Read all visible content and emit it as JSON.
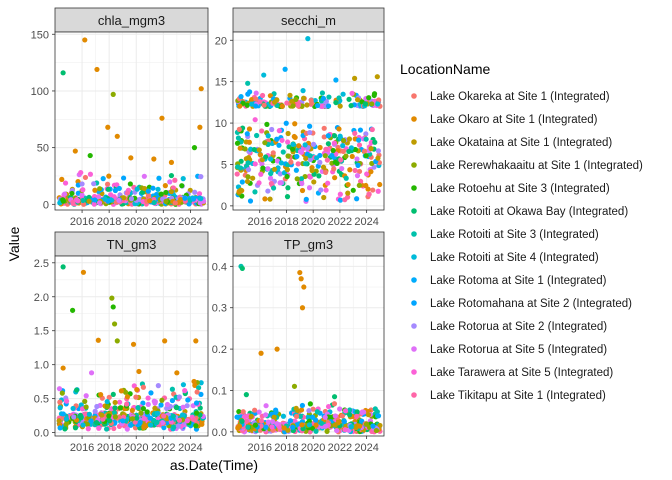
{
  "chart_data": {
    "type": "scatter",
    "xlabel": "as.Date(Time)",
    "ylabel": "Value",
    "x_range": [
      2014.0,
      2025.3
    ],
    "x_ticks": [
      2016,
      2018,
      2020,
      2022,
      2024
    ],
    "x_tick_labels": [
      "2016",
      "2018",
      "2020",
      "2022",
      "2024"
    ],
    "grid": true,
    "legend_title": "LocationName",
    "legend_position": "right",
    "legend": [
      {
        "name": "Lake Okareka at Site 1 (Integrated)",
        "color": "#F8766D"
      },
      {
        "name": "Lake Okaro at Site 1 (Integrated)",
        "color": "#E18A00"
      },
      {
        "name": "Lake Okataina at Site 1 (Integrated)",
        "color": "#BE9C00"
      },
      {
        "name": "Lake Rerewhakaaitu at Site 1 (Integrated)",
        "color": "#8CAB00"
      },
      {
        "name": "Lake Rotoehu at Site 3 (Integrated)",
        "color": "#24B700"
      },
      {
        "name": "Lake Rotoiti at Okawa Bay (Integrated)",
        "color": "#00BE70"
      },
      {
        "name": "Lake Rotoiti at Site 3 (Integrated)",
        "color": "#00C1AB"
      },
      {
        "name": "Lake Rotoiti at Site 4 (Integrated)",
        "color": "#00BBDA"
      },
      {
        "name": "Lake Rotoma at Site 1 (Integrated)",
        "color": "#00ACFC"
      },
      {
        "name": "Lake Rotomahana at Site 2 (Integrated)",
        "color": "#00A5FF"
      },
      {
        "name": "Lake Rotorua at Site 2 (Integrated)",
        "color": "#A58AFF"
      },
      {
        "name": "Lake Rotorua at Site 5 (Integrated)",
        "color": "#DF70F8"
      },
      {
        "name": "Lake Tarawera at Site 5 (Integrated)",
        "color": "#FB61D7"
      },
      {
        "name": "Lake Tikitapu at Site 1 (Integrated)",
        "color": "#FF66A8"
      }
    ],
    "panels": [
      {
        "title": "chla_mgm3",
        "ylim": [
          -5,
          152
        ],
        "y_ticks": [
          0,
          50,
          100,
          150
        ],
        "y_tick_labels": [
          "0",
          "50",
          "100",
          "150"
        ],
        "points": [
          {
            "x": 2014.6,
            "y": 116,
            "s": 5
          },
          {
            "x": 2016.2,
            "y": 145,
            "s": 1
          },
          {
            "x": 2017.1,
            "y": 119,
            "s": 1
          },
          {
            "x": 2018.3,
            "y": 97,
            "s": 3
          },
          {
            "x": 2017.9,
            "y": 68,
            "s": 1
          },
          {
            "x": 2018.6,
            "y": 60,
            "s": 1
          },
          {
            "x": 2021.9,
            "y": 76,
            "s": 1
          },
          {
            "x": 2024.8,
            "y": 102,
            "s": 1
          },
          {
            "x": 2024.7,
            "y": 68,
            "s": 1
          },
          {
            "x": 2024.3,
            "y": 50,
            "s": 4
          },
          {
            "x": 2015.5,
            "y": 47,
            "s": 1
          },
          {
            "x": 2016.6,
            "y": 43,
            "s": 4
          },
          {
            "x": 2019.6,
            "y": 41,
            "s": 1
          },
          {
            "x": 2021.3,
            "y": 40,
            "s": 1
          },
          {
            "x": 2022.6,
            "y": 37,
            "s": 1
          },
          {
            "x": 2014.5,
            "y": 22,
            "s": 1
          },
          {
            "x": 2015.9,
            "y": 28,
            "s": 12
          },
          {
            "x": 2016.0,
            "y": 18,
            "s": 10
          }
        ],
        "band": {
          "min": 0,
          "mid": 3,
          "max": 8,
          "spike_max": 30,
          "spike_share": 0.16
        }
      },
      {
        "title": "secchi_m",
        "ylim": [
          -0.5,
          21
        ],
        "y_ticks": [
          0,
          5,
          10,
          15,
          20
        ],
        "y_tick_labels": [
          "0",
          "5",
          "10",
          "15",
          "20"
        ],
        "points": [
          {
            "x": 2019.6,
            "y": 20.2,
            "s": 7
          },
          {
            "x": 2017.9,
            "y": 16.5,
            "s": 8
          },
          {
            "x": 2016.3,
            "y": 15.8,
            "s": 7
          },
          {
            "x": 2021.7,
            "y": 15.2,
            "s": 8
          },
          {
            "x": 2023.1,
            "y": 15.4,
            "s": 2
          },
          {
            "x": 2024.8,
            "y": 15.6,
            "s": 2
          },
          {
            "x": 2014.6,
            "y": 13.2,
            "s": 8
          },
          {
            "x": 2015.1,
            "y": 14.8,
            "s": 6
          }
        ],
        "band": {
          "min": 0.5,
          "mid": 6,
          "max": 12,
          "spike_max": 14,
          "spike_share": 0.3
        }
      },
      {
        "title": "TN_gm3",
        "ylim": [
          -0.05,
          2.6
        ],
        "y_ticks": [
          0.0,
          0.5,
          1.0,
          1.5,
          2.0,
          2.5
        ],
        "y_tick_labels": [
          "0.0",
          "0.5",
          "1.0",
          "1.5",
          "2.0",
          "2.5"
        ],
        "points": [
          {
            "x": 2014.6,
            "y": 2.44,
            "s": 5
          },
          {
            "x": 2016.1,
            "y": 2.36,
            "s": 1
          },
          {
            "x": 2015.3,
            "y": 1.8,
            "s": 4
          },
          {
            "x": 2018.2,
            "y": 1.98,
            "s": 3
          },
          {
            "x": 2018.3,
            "y": 1.85,
            "s": 4
          },
          {
            "x": 2018.4,
            "y": 1.6,
            "s": 3
          },
          {
            "x": 2018.6,
            "y": 1.35,
            "s": 3
          },
          {
            "x": 2017.2,
            "y": 1.36,
            "s": 1
          },
          {
            "x": 2022.1,
            "y": 1.35,
            "s": 1
          },
          {
            "x": 2024.4,
            "y": 1.35,
            "s": 1
          },
          {
            "x": 2019.8,
            "y": 1.3,
            "s": 1
          },
          {
            "x": 2014.6,
            "y": 0.95,
            "s": 1
          },
          {
            "x": 2016.7,
            "y": 0.88,
            "s": 11
          },
          {
            "x": 2020.2,
            "y": 0.9,
            "s": 1
          },
          {
            "x": 2023.0,
            "y": 0.88,
            "s": 1
          }
        ],
        "band": {
          "min": 0.05,
          "mid": 0.2,
          "max": 0.35,
          "spike_max": 0.8,
          "spike_share": 0.22
        }
      },
      {
        "title": "TP_gm3",
        "ylim": [
          -0.01,
          0.425
        ],
        "y_ticks": [
          0.0,
          0.1,
          0.2,
          0.3,
          0.4
        ],
        "y_tick_labels": [
          "0.0",
          "0.1",
          "0.2",
          "0.3",
          "0.4"
        ],
        "points": [
          {
            "x": 2014.6,
            "y": 0.4,
            "s": 6
          },
          {
            "x": 2014.7,
            "y": 0.395,
            "s": 5
          },
          {
            "x": 2019.0,
            "y": 0.385,
            "s": 1
          },
          {
            "x": 2019.1,
            "y": 0.37,
            "s": 1
          },
          {
            "x": 2019.3,
            "y": 0.35,
            "s": 1
          },
          {
            "x": 2019.2,
            "y": 0.3,
            "s": 1
          },
          {
            "x": 2016.1,
            "y": 0.19,
            "s": 1
          },
          {
            "x": 2017.3,
            "y": 0.2,
            "s": 1
          },
          {
            "x": 2018.6,
            "y": 0.11,
            "s": 3
          },
          {
            "x": 2021.6,
            "y": 0.085,
            "s": 5
          },
          {
            "x": 2015.0,
            "y": 0.09,
            "s": 5
          }
        ],
        "band": {
          "min": 0.0,
          "mid": 0.012,
          "max": 0.035,
          "spike_max": 0.07,
          "spike_share": 0.25
        }
      }
    ]
  }
}
